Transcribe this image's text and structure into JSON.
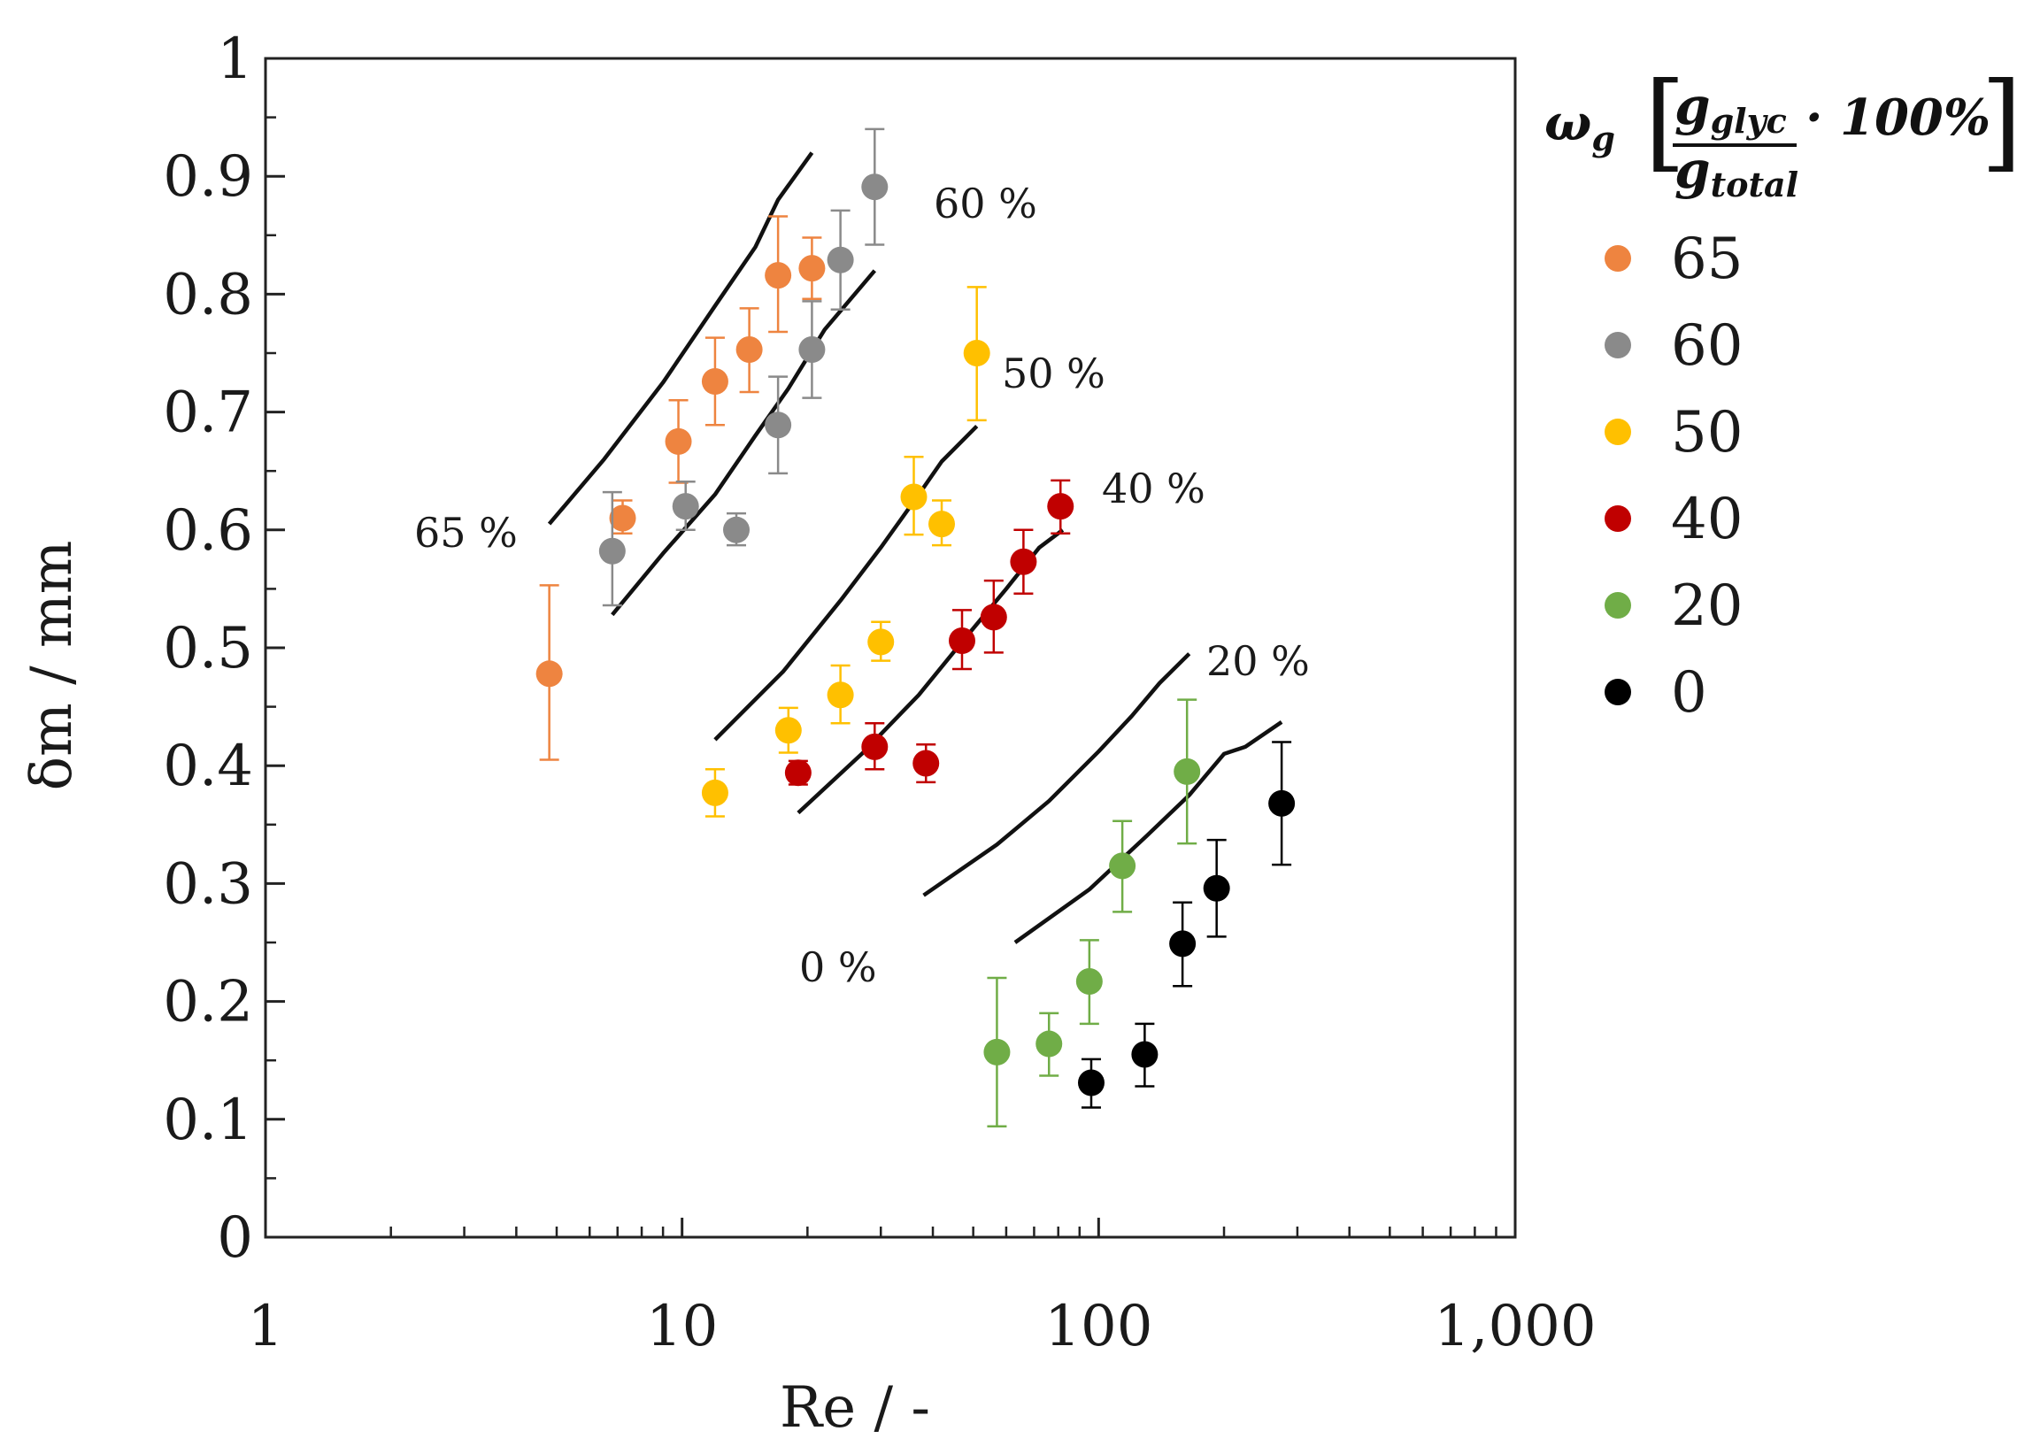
{
  "chart_data": {
    "type": "scatter",
    "title": "",
    "xlabel": "Re / -",
    "ylabel": "δm / mm",
    "xscale": "log",
    "xlim": [
      1,
      1000
    ],
    "ylim": [
      0,
      1
    ],
    "x_ticks": [
      {
        "value": 1,
        "label": "1"
      },
      {
        "value": 10,
        "label": "10"
      },
      {
        "value": 100,
        "label": "100"
      },
      {
        "value": 1000,
        "label": "1,000"
      }
    ],
    "y_ticks": [
      {
        "value": 0,
        "label": "0"
      },
      {
        "value": 0.1,
        "label": "0.1"
      },
      {
        "value": 0.2,
        "label": "0.2"
      },
      {
        "value": 0.3,
        "label": "0.3"
      },
      {
        "value": 0.4,
        "label": "0.4"
      },
      {
        "value": 0.5,
        "label": "0.5"
      },
      {
        "value": 0.6,
        "label": "0.6"
      },
      {
        "value": 0.7,
        "label": "0.7"
      },
      {
        "value": 0.8,
        "label": "0.8"
      },
      {
        "value": 0.9,
        "label": "0.9"
      },
      {
        "value": 1,
        "label": "1"
      }
    ],
    "grid": false,
    "legend": {
      "placement": "right",
      "title_symbol": "ω",
      "title_sub": "g",
      "num_base": "g",
      "num_sub": "glyc",
      "den_base": "g",
      "den_sub": "total",
      "factor": "· 100%"
    },
    "series": [
      {
        "name": "65",
        "color": "#ee8440",
        "points": [
          {
            "x": 4.8,
            "y": 0.478,
            "lo": 0.405,
            "hi": 0.553
          },
          {
            "x": 7.2,
            "y": 0.61,
            "lo": 0.597,
            "hi": 0.625
          },
          {
            "x": 9.8,
            "y": 0.675,
            "lo": 0.64,
            "hi": 0.71
          },
          {
            "x": 12.0,
            "y": 0.726,
            "lo": 0.689,
            "hi": 0.763
          },
          {
            "x": 14.5,
            "y": 0.753,
            "lo": 0.717,
            "hi": 0.788
          },
          {
            "x": 17.0,
            "y": 0.816,
            "lo": 0.768,
            "hi": 0.866
          },
          {
            "x": 20.5,
            "y": 0.822,
            "lo": 0.796,
            "hi": 0.848
          }
        ]
      },
      {
        "name": "60",
        "color": "#8a8a8a",
        "points": [
          {
            "x": 6.8,
            "y": 0.582,
            "lo": 0.536,
            "hi": 0.632
          },
          {
            "x": 10.2,
            "y": 0.62,
            "lo": 0.6,
            "hi": 0.641
          },
          {
            "x": 13.5,
            "y": 0.6,
            "lo": 0.587,
            "hi": 0.614
          },
          {
            "x": 17.0,
            "y": 0.689,
            "lo": 0.648,
            "hi": 0.73
          },
          {
            "x": 20.5,
            "y": 0.753,
            "lo": 0.712,
            "hi": 0.794
          },
          {
            "x": 24.0,
            "y": 0.829,
            "lo": 0.787,
            "hi": 0.871
          },
          {
            "x": 29.0,
            "y": 0.891,
            "lo": 0.842,
            "hi": 0.94
          }
        ]
      },
      {
        "name": "50",
        "color": "#ffc000",
        "points": [
          {
            "x": 12.0,
            "y": 0.377,
            "lo": 0.357,
            "hi": 0.397
          },
          {
            "x": 18.0,
            "y": 0.43,
            "lo": 0.411,
            "hi": 0.449
          },
          {
            "x": 24.0,
            "y": 0.46,
            "lo": 0.436,
            "hi": 0.485
          },
          {
            "x": 30.0,
            "y": 0.505,
            "lo": 0.489,
            "hi": 0.522
          },
          {
            "x": 36.0,
            "y": 0.628,
            "lo": 0.596,
            "hi": 0.662
          },
          {
            "x": 42.0,
            "y": 0.605,
            "lo": 0.587,
            "hi": 0.625
          },
          {
            "x": 51.0,
            "y": 0.75,
            "lo": 0.693,
            "hi": 0.806
          }
        ]
      },
      {
        "name": "40",
        "color": "#c00000",
        "points": [
          {
            "x": 19.0,
            "y": 0.394,
            "lo": 0.384,
            "hi": 0.404
          },
          {
            "x": 29.0,
            "y": 0.416,
            "lo": 0.397,
            "hi": 0.436
          },
          {
            "x": 38.5,
            "y": 0.402,
            "lo": 0.386,
            "hi": 0.418
          },
          {
            "x": 47.0,
            "y": 0.506,
            "lo": 0.482,
            "hi": 0.532
          },
          {
            "x": 56.0,
            "y": 0.526,
            "lo": 0.496,
            "hi": 0.557
          },
          {
            "x": 66.0,
            "y": 0.573,
            "lo": 0.546,
            "hi": 0.6
          },
          {
            "x": 81.0,
            "y": 0.62,
            "lo": 0.597,
            "hi": 0.642
          }
        ]
      },
      {
        "name": "20",
        "color": "#70ad47",
        "points": [
          {
            "x": 57.0,
            "y": 0.157,
            "lo": 0.094,
            "hi": 0.22
          },
          {
            "x": 76.0,
            "y": 0.164,
            "lo": 0.137,
            "hi": 0.19
          },
          {
            "x": 95.0,
            "y": 0.217,
            "lo": 0.181,
            "hi": 0.252
          },
          {
            "x": 114.0,
            "y": 0.315,
            "lo": 0.276,
            "hi": 0.353
          },
          {
            "x": 163.0,
            "y": 0.395,
            "lo": 0.334,
            "hi": 0.456
          }
        ]
      },
      {
        "name": "0",
        "color": "#000000",
        "points": [
          {
            "x": 96.0,
            "y": 0.131,
            "lo": 0.11,
            "hi": 0.151
          },
          {
            "x": 129.0,
            "y": 0.155,
            "lo": 0.128,
            "hi": 0.181
          },
          {
            "x": 159.0,
            "y": 0.249,
            "lo": 0.213,
            "hi": 0.284
          },
          {
            "x": 192.0,
            "y": 0.296,
            "lo": 0.255,
            "hi": 0.337
          },
          {
            "x": 275.0,
            "y": 0.368,
            "lo": 0.316,
            "hi": 0.42
          }
        ]
      }
    ],
    "model_curves": [
      {
        "label": "65 %",
        "points": [
          [
            4.8,
            0.605
          ],
          [
            6.5,
            0.66
          ],
          [
            9.0,
            0.725
          ],
          [
            12.0,
            0.79
          ],
          [
            15.0,
            0.84
          ],
          [
            17.0,
            0.88
          ],
          [
            20.5,
            0.92
          ]
        ]
      },
      {
        "label": "60 %",
        "points": [
          [
            6.8,
            0.528
          ],
          [
            9.0,
            0.58
          ],
          [
            12.0,
            0.63
          ],
          [
            15.0,
            0.68
          ],
          [
            18.0,
            0.72
          ],
          [
            22.0,
            0.77
          ],
          [
            29.0,
            0.82
          ]
        ]
      },
      {
        "label": "50 %",
        "points": [
          [
            12.0,
            0.422
          ],
          [
            17.5,
            0.48
          ],
          [
            24.0,
            0.54
          ],
          [
            30.0,
            0.585
          ],
          [
            37.0,
            0.63
          ],
          [
            42.0,
            0.658
          ],
          [
            51.0,
            0.688
          ]
        ]
      },
      {
        "label": "40 %",
        "points": [
          [
            19.0,
            0.36
          ],
          [
            27.0,
            0.41
          ],
          [
            37.0,
            0.46
          ],
          [
            47.0,
            0.505
          ],
          [
            60.0,
            0.55
          ],
          [
            72.0,
            0.585
          ],
          [
            82.0,
            0.6
          ]
        ]
      },
      {
        "label": "20 %",
        "points": [
          [
            38.0,
            0.29
          ],
          [
            57.0,
            0.333
          ],
          [
            76.0,
            0.37
          ],
          [
            100.0,
            0.412
          ],
          [
            120.0,
            0.442
          ],
          [
            140.0,
            0.47
          ],
          [
            165.0,
            0.495
          ]
        ]
      },
      {
        "label": "0 %",
        "points": [
          [
            63.0,
            0.25
          ],
          [
            95.0,
            0.295
          ],
          [
            130.0,
            0.34
          ],
          [
            165.0,
            0.375
          ],
          [
            200.0,
            0.41
          ],
          [
            225.0,
            0.416
          ],
          [
            275.0,
            0.437
          ]
        ]
      }
    ]
  }
}
